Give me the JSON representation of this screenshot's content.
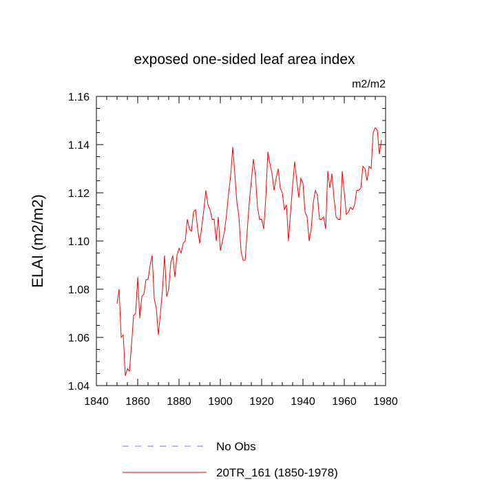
{
  "chart_data": {
    "type": "line",
    "title": "exposed one-sided leaf area index",
    "units": "m2/m2",
    "xlabel": "",
    "ylabel": "ELAI  (m2/m2)",
    "xlim": [
      1840,
      1980
    ],
    "ylim": [
      1.04,
      1.16
    ],
    "x_ticks": [
      1840,
      1860,
      1880,
      1900,
      1920,
      1940,
      1960,
      1980
    ],
    "y_ticks": [
      1.04,
      1.06,
      1.08,
      1.1,
      1.12,
      1.14,
      1.16
    ],
    "y_tick_labels": [
      "1.04",
      "1.06",
      "1.08",
      "1.10",
      "1.12",
      "1.14",
      "1.16"
    ],
    "grid": false,
    "legend_placement": "bottom",
    "series": [
      {
        "name": "No Obs",
        "color": "#6f6fff",
        "dash": "dashed",
        "x": [],
        "y": []
      },
      {
        "name": "20TR_161 (1850-1978)",
        "color": "#ff0000",
        "dash": "solid",
        "x": [
          1850,
          1851,
          1852,
          1853,
          1854,
          1855,
          1856,
          1857,
          1858,
          1859,
          1860,
          1861,
          1862,
          1863,
          1864,
          1865,
          1866,
          1867,
          1868,
          1869,
          1870,
          1871,
          1872,
          1873,
          1874,
          1875,
          1876,
          1877,
          1878,
          1879,
          1880,
          1881,
          1882,
          1883,
          1884,
          1885,
          1886,
          1887,
          1888,
          1889,
          1890,
          1891,
          1892,
          1893,
          1894,
          1895,
          1896,
          1897,
          1898,
          1899,
          1900,
          1901,
          1902,
          1903,
          1904,
          1905,
          1906,
          1907,
          1908,
          1909,
          1910,
          1911,
          1912,
          1913,
          1914,
          1915,
          1916,
          1917,
          1918,
          1919,
          1920,
          1921,
          1922,
          1923,
          1924,
          1925,
          1926,
          1927,
          1928,
          1929,
          1930,
          1931,
          1932,
          1933,
          1934,
          1935,
          1936,
          1937,
          1938,
          1939,
          1940,
          1941,
          1942,
          1943,
          1944,
          1945,
          1946,
          1947,
          1948,
          1949,
          1950,
          1951,
          1952,
          1953,
          1954,
          1955,
          1956,
          1957,
          1958,
          1959,
          1960,
          1961,
          1962,
          1963,
          1964,
          1965,
          1966,
          1967,
          1968,
          1969,
          1970,
          1971,
          1972,
          1973,
          1974,
          1975,
          1976,
          1977,
          1978
        ],
        "y": [
          1.074,
          1.08,
          1.06,
          1.061,
          1.044,
          1.047,
          1.046,
          1.057,
          1.069,
          1.07,
          1.085,
          1.068,
          1.077,
          1.078,
          1.084,
          1.084,
          1.09,
          1.094,
          1.076,
          1.072,
          1.061,
          1.07,
          1.08,
          1.094,
          1.077,
          1.08,
          1.091,
          1.094,
          1.085,
          1.094,
          1.097,
          1.095,
          1.099,
          1.1,
          1.109,
          1.105,
          1.104,
          1.112,
          1.113,
          1.105,
          1.099,
          1.106,
          1.113,
          1.121,
          1.115,
          1.113,
          1.109,
          1.109,
          1.1,
          1.11,
          1.096,
          1.1,
          1.104,
          1.111,
          1.12,
          1.127,
          1.139,
          1.128,
          1.116,
          1.11,
          1.096,
          1.092,
          1.092,
          1.104,
          1.116,
          1.125,
          1.134,
          1.127,
          1.114,
          1.109,
          1.109,
          1.105,
          1.118,
          1.137,
          1.132,
          1.128,
          1.121,
          1.126,
          1.13,
          1.122,
          1.12,
          1.113,
          1.115,
          1.1,
          1.112,
          1.123,
          1.133,
          1.125,
          1.118,
          1.126,
          1.124,
          1.112,
          1.11,
          1.1,
          1.105,
          1.116,
          1.121,
          1.119,
          1.109,
          1.109,
          1.11,
          1.105,
          1.129,
          1.122,
          1.128,
          1.118,
          1.11,
          1.109,
          1.109,
          1.129,
          1.12,
          1.111,
          1.112,
          1.114,
          1.113,
          1.115,
          1.121,
          1.121,
          1.122,
          1.131,
          1.13,
          1.125,
          1.131,
          1.13,
          1.145,
          1.147,
          1.146,
          1.136,
          1.142
        ]
      }
    ]
  }
}
